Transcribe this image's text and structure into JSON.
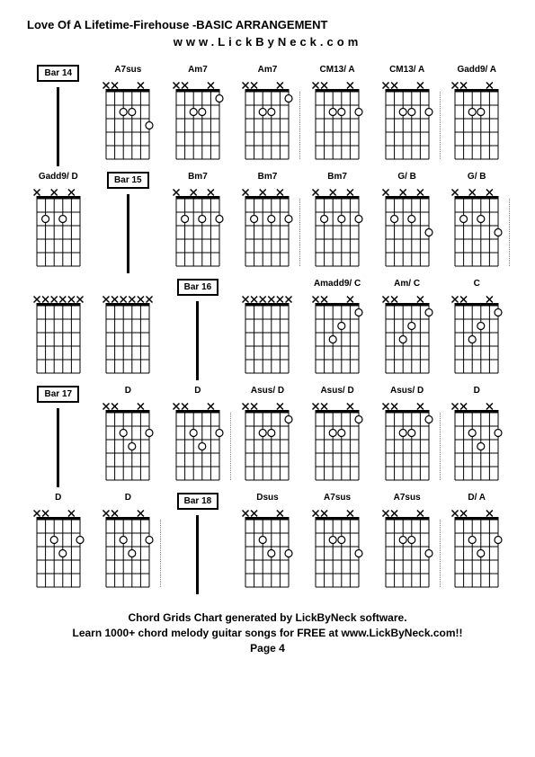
{
  "title": "Love Of A Lifetime-Firehouse -BASIC ARRANGEMENT",
  "subtitle": "www.LickByNeck.com",
  "footer_line1": "Chord Grids Chart generated by LickByNeck software.",
  "footer_line2": "Learn 1000+ chord melody guitar songs for FREE at www.LickByNeck.com!!",
  "page_label": "Page 4",
  "colors": {
    "background": "#ffffff",
    "text": "#000000",
    "grid_line": "#000000",
    "dot_fill": "#ffffff",
    "dot_stroke": "#000000",
    "x_mark": "#000000"
  },
  "diagram_style": {
    "strings": 6,
    "frets": 5,
    "string_spacing": 10,
    "fret_spacing": 15,
    "nut_height": 4,
    "dot_radius": 4,
    "x_size": 6,
    "font_size_label": 10
  },
  "cells": [
    {
      "type": "bar",
      "label": "Bar 14"
    },
    {
      "type": "chord",
      "label": "A7sus",
      "mutes": [
        0,
        1,
        4
      ],
      "dots": [
        [
          2,
          1
        ],
        [
          3,
          1
        ],
        [
          5,
          2
        ]
      ]
    },
    {
      "type": "chord",
      "label": "Am7",
      "mutes": [
        0,
        1,
        4
      ],
      "dots": [
        [
          2,
          1
        ],
        [
          3,
          1
        ],
        [
          5,
          0
        ]
      ]
    },
    {
      "type": "chord",
      "label": "Am7",
      "mutes": [
        0,
        1,
        4
      ],
      "dots": [
        [
          2,
          1
        ],
        [
          3,
          1
        ],
        [
          5,
          0
        ]
      ],
      "sep": true
    },
    {
      "type": "chord",
      "label": "CM13/ A",
      "mutes": [
        0,
        1,
        4
      ],
      "dots": [
        [
          2,
          1
        ],
        [
          3,
          1
        ],
        [
          5,
          1
        ]
      ]
    },
    {
      "type": "chord",
      "label": "CM13/ A",
      "mutes": [
        0,
        1,
        4
      ],
      "dots": [
        [
          2,
          1
        ],
        [
          3,
          1
        ],
        [
          5,
          1
        ]
      ],
      "sep": true
    },
    {
      "type": "chord",
      "label": "Gadd9/ A",
      "mutes": [
        0,
        1,
        4
      ],
      "dots": [
        [
          2,
          1
        ],
        [
          3,
          1
        ]
      ]
    },
    {
      "type": "chord",
      "label": "Gadd9/ D",
      "mutes": [
        0,
        2,
        4
      ],
      "dots": [
        [
          1,
          1
        ],
        [
          3,
          1
        ]
      ]
    },
    {
      "type": "bar",
      "label": "Bar 15"
    },
    {
      "type": "chord",
      "label": "Bm7",
      "mutes": [
        0,
        2,
        4
      ],
      "dots": [
        [
          1,
          1
        ],
        [
          3,
          1
        ],
        [
          5,
          1
        ]
      ]
    },
    {
      "type": "chord",
      "label": "Bm7",
      "mutes": [
        0,
        2,
        4
      ],
      "dots": [
        [
          1,
          1
        ],
        [
          3,
          1
        ],
        [
          5,
          1
        ]
      ],
      "sep": true
    },
    {
      "type": "chord",
      "label": "Bm7",
      "mutes": [
        0,
        2,
        4
      ],
      "dots": [
        [
          1,
          1
        ],
        [
          3,
          1
        ],
        [
          5,
          1
        ]
      ]
    },
    {
      "type": "chord",
      "label": "G/ B",
      "mutes": [
        0,
        2,
        4
      ],
      "dots": [
        [
          1,
          1
        ],
        [
          3,
          1
        ],
        [
          5,
          2
        ]
      ]
    },
    {
      "type": "chord",
      "label": "G/ B",
      "mutes": [
        0,
        2,
        4
      ],
      "dots": [
        [
          1,
          1
        ],
        [
          3,
          1
        ],
        [
          5,
          2
        ]
      ],
      "sep": true
    },
    {
      "type": "chord",
      "label": "",
      "mutes": [
        0,
        1,
        2,
        3,
        4,
        5
      ],
      "dots": []
    },
    {
      "type": "chord",
      "label": "",
      "mutes": [
        0,
        1,
        2,
        3,
        4,
        5
      ],
      "dots": []
    },
    {
      "type": "bar",
      "label": "Bar 16"
    },
    {
      "type": "chord",
      "label": "",
      "mutes": [
        0,
        1,
        2,
        3,
        4,
        5
      ],
      "dots": []
    },
    {
      "type": "chord",
      "label": "Amadd9/ C",
      "mutes": [
        0,
        1,
        4
      ],
      "dots": [
        [
          2,
          2
        ],
        [
          3,
          1
        ],
        [
          5,
          0
        ]
      ]
    },
    {
      "type": "chord",
      "label": "Am/ C",
      "mutes": [
        0,
        1,
        4
      ],
      "dots": [
        [
          2,
          2
        ],
        [
          3,
          1
        ],
        [
          5,
          0
        ]
      ]
    },
    {
      "type": "chord",
      "label": "C",
      "mutes": [
        0,
        1,
        4
      ],
      "dots": [
        [
          2,
          2
        ],
        [
          3,
          1
        ],
        [
          5,
          0
        ]
      ]
    },
    {
      "type": "bar",
      "label": "Bar 17"
    },
    {
      "type": "chord",
      "label": "D",
      "mutes": [
        0,
        1,
        4
      ],
      "dots": [
        [
          2,
          1
        ],
        [
          3,
          2
        ],
        [
          5,
          1
        ]
      ]
    },
    {
      "type": "chord",
      "label": "D",
      "mutes": [
        0,
        1,
        4
      ],
      "dots": [
        [
          2,
          1
        ],
        [
          3,
          2
        ],
        [
          5,
          1
        ]
      ],
      "sep": true
    },
    {
      "type": "chord",
      "label": "Asus/ D",
      "mutes": [
        0,
        1,
        4
      ],
      "dots": [
        [
          2,
          1
        ],
        [
          3,
          1
        ],
        [
          5,
          0
        ]
      ]
    },
    {
      "type": "chord",
      "label": "Asus/ D",
      "mutes": [
        0,
        1,
        4
      ],
      "dots": [
        [
          2,
          1
        ],
        [
          3,
          1
        ],
        [
          5,
          0
        ]
      ]
    },
    {
      "type": "chord",
      "label": "Asus/ D",
      "mutes": [
        0,
        1,
        4
      ],
      "dots": [
        [
          2,
          1
        ],
        [
          3,
          1
        ],
        [
          5,
          0
        ]
      ],
      "sep": true
    },
    {
      "type": "chord",
      "label": "D",
      "mutes": [
        0,
        1,
        4
      ],
      "dots": [
        [
          2,
          1
        ],
        [
          3,
          2
        ],
        [
          5,
          1
        ]
      ]
    },
    {
      "type": "chord",
      "label": "D",
      "mutes": [
        0,
        1,
        4
      ],
      "dots": [
        [
          2,
          1
        ],
        [
          3,
          2
        ],
        [
          5,
          1
        ]
      ]
    },
    {
      "type": "chord",
      "label": "D",
      "mutes": [
        0,
        1,
        4
      ],
      "dots": [
        [
          2,
          1
        ],
        [
          3,
          2
        ],
        [
          5,
          1
        ]
      ],
      "sep": true
    },
    {
      "type": "bar",
      "label": "Bar 18"
    },
    {
      "type": "chord",
      "label": "Dsus",
      "mutes": [
        0,
        1,
        4
      ],
      "dots": [
        [
          2,
          1
        ],
        [
          3,
          2
        ],
        [
          5,
          2
        ]
      ]
    },
    {
      "type": "chord",
      "label": "A7sus",
      "mutes": [
        0,
        1,
        4
      ],
      "dots": [
        [
          2,
          1
        ],
        [
          3,
          1
        ],
        [
          5,
          2
        ]
      ]
    },
    {
      "type": "chord",
      "label": "A7sus",
      "mutes": [
        0,
        1,
        4
      ],
      "dots": [
        [
          2,
          1
        ],
        [
          3,
          1
        ],
        [
          5,
          2
        ]
      ],
      "sep": true
    },
    {
      "type": "chord",
      "label": "D/ A",
      "mutes": [
        0,
        1,
        4
      ],
      "dots": [
        [
          2,
          1
        ],
        [
          3,
          2
        ],
        [
          5,
          1
        ]
      ]
    }
  ]
}
